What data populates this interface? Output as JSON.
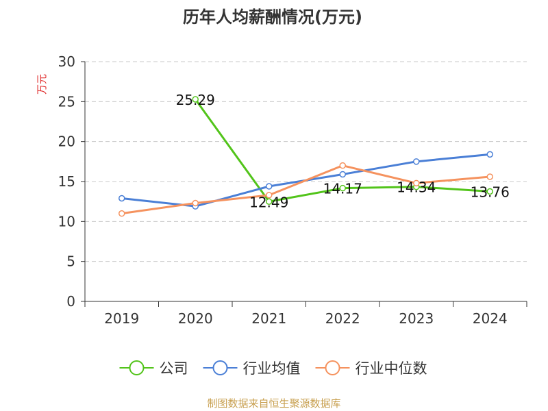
{
  "chart_data": {
    "type": "line",
    "title": "历年人均薪酬情况(万元)",
    "ylabel": "万元",
    "xlabel": "",
    "categories": [
      "2019",
      "2020",
      "2021",
      "2022",
      "2023",
      "2024"
    ],
    "ylim": [
      0,
      30
    ],
    "yticks": [
      0,
      5,
      10,
      15,
      20,
      25,
      30
    ],
    "grid": true,
    "legend_position": "bottom",
    "series": [
      {
        "name": "公司",
        "color": "#52c41a",
        "values": [
          null,
          25.29,
          12.49,
          14.17,
          14.34,
          13.76
        ],
        "labels": [
          null,
          "25.29",
          "12.49",
          "14.17",
          "14.34",
          "13.76"
        ]
      },
      {
        "name": "行业均值",
        "color": "#4a7fd6",
        "values": [
          12.9,
          11.9,
          14.4,
          15.9,
          17.5,
          18.4
        ],
        "labels": [
          null,
          null,
          null,
          null,
          null,
          null
        ]
      },
      {
        "name": "行业中位数",
        "color": "#f5925e",
        "values": [
          11.0,
          12.3,
          13.3,
          17.0,
          14.8,
          15.6
        ],
        "labels": [
          null,
          null,
          null,
          null,
          null,
          null
        ]
      }
    ]
  },
  "footer": {
    "source": "制图数据来自恒生聚源数据库"
  }
}
